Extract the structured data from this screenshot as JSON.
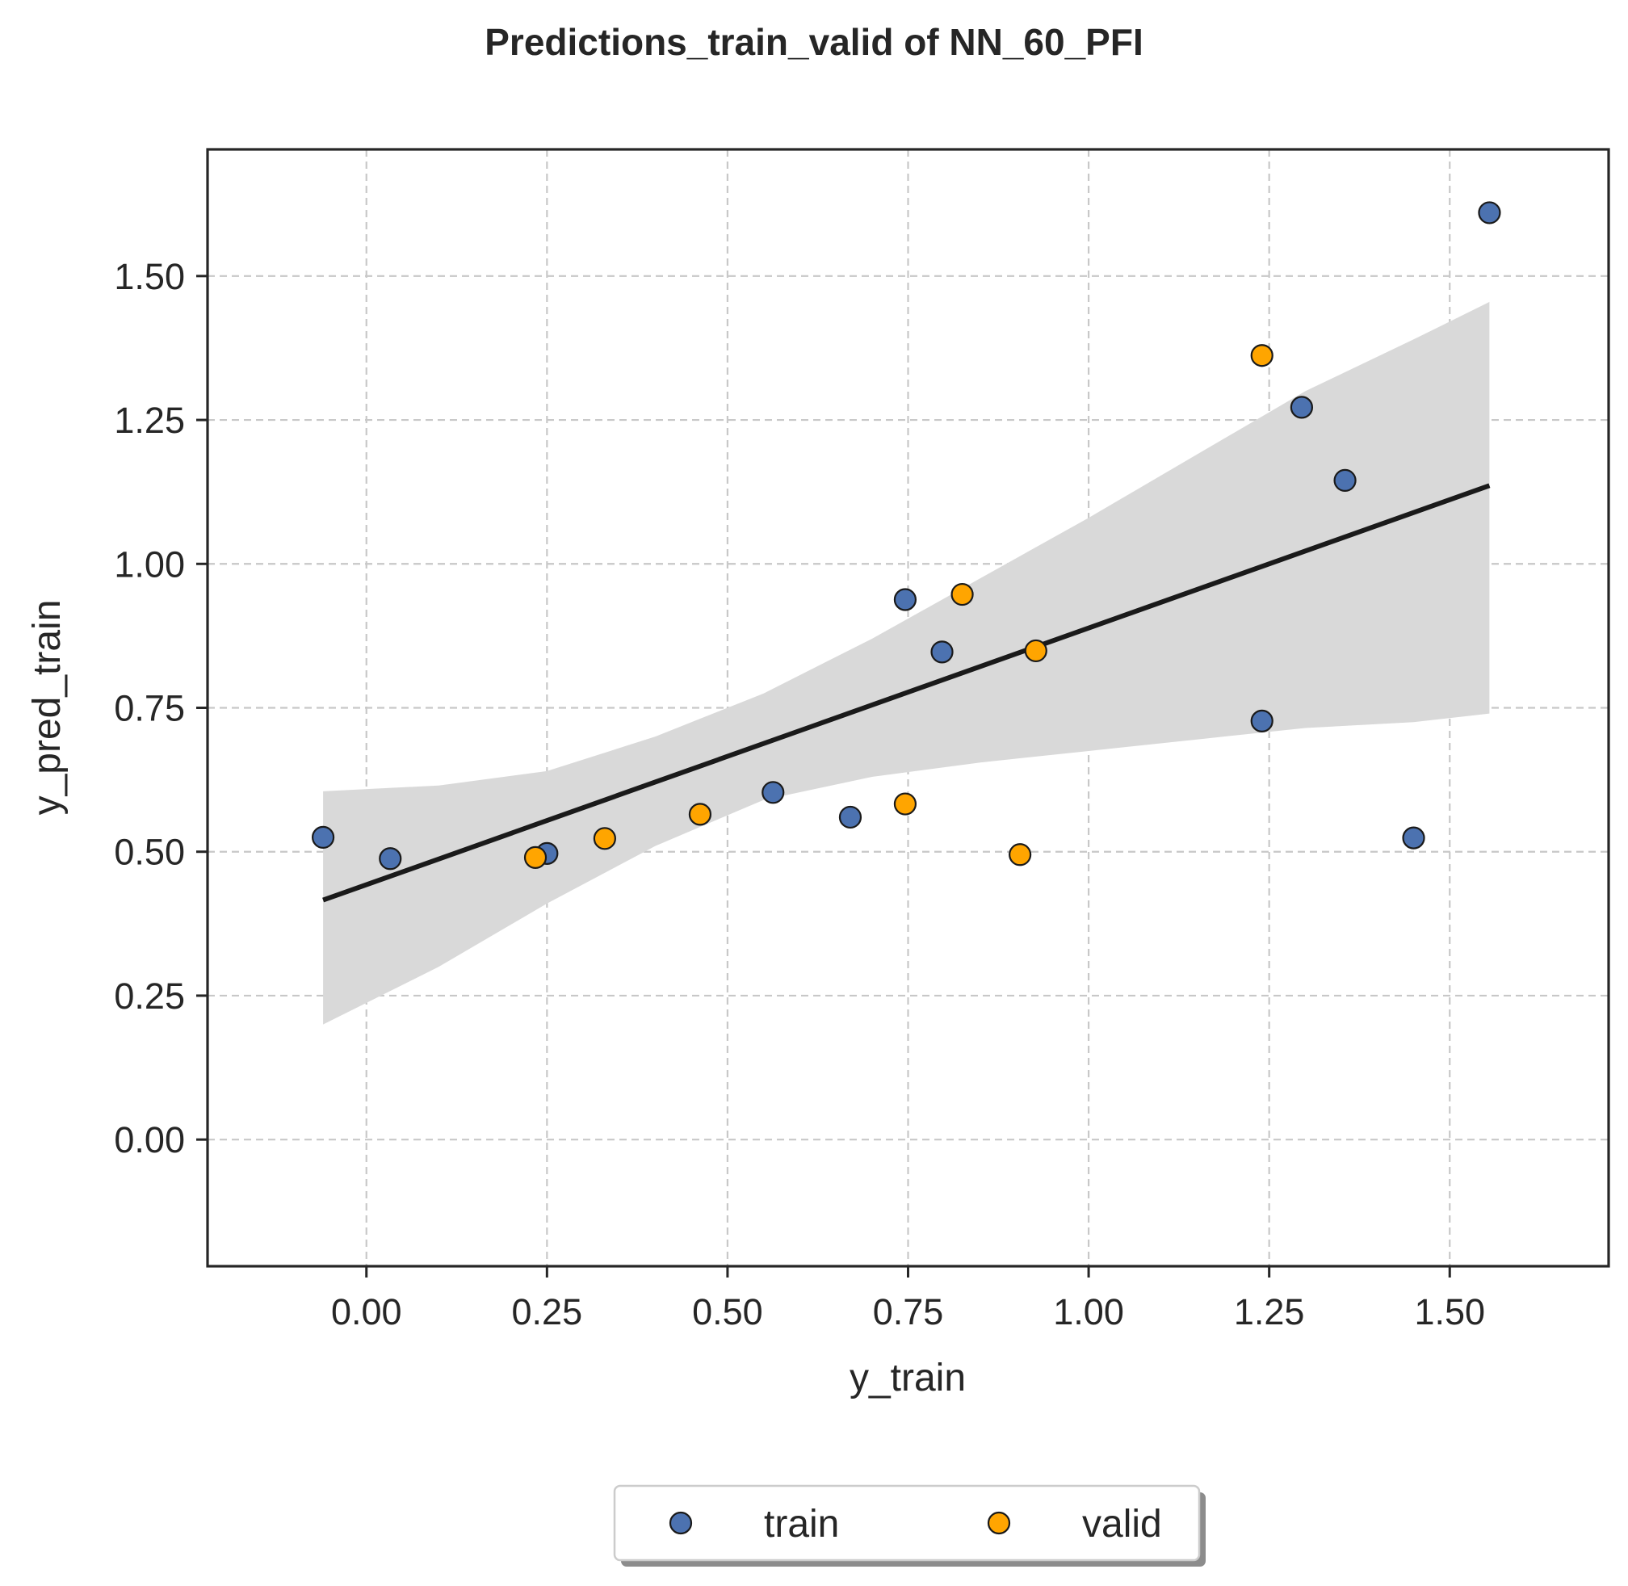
{
  "chart_data": {
    "type": "scatter",
    "title": "Predictions_train_valid of NN_60_PFI",
    "xlabel": "y_train",
    "ylabel": "y_pred_train",
    "xlim": [
      -0.22,
      1.72
    ],
    "ylim": [
      -0.22,
      1.72
    ],
    "xticks": [
      "0.00",
      "0.25",
      "0.50",
      "0.75",
      "1.00",
      "1.25",
      "1.50"
    ],
    "yticks": [
      "0.00",
      "0.25",
      "0.50",
      "0.75",
      "1.00",
      "1.25",
      "1.50"
    ],
    "grid": true,
    "legend_position": "bottom-center",
    "series": [
      {
        "name": "train",
        "color": "#4c72b0",
        "points": [
          [
            -0.06,
            0.525
          ],
          [
            0.033,
            0.488
          ],
          [
            0.25,
            0.497
          ],
          [
            0.563,
            0.603
          ],
          [
            0.67,
            0.56
          ],
          [
            0.746,
            0.938
          ],
          [
            0.797,
            0.847
          ],
          [
            1.24,
            0.727
          ],
          [
            1.295,
            1.272
          ],
          [
            1.355,
            1.145
          ],
          [
            1.45,
            0.524
          ],
          [
            1.555,
            1.61
          ]
        ]
      },
      {
        "name": "valid",
        "color": "#ffa500",
        "points": [
          [
            0.234,
            0.49
          ],
          [
            0.33,
            0.523
          ],
          [
            0.462,
            0.565
          ],
          [
            0.746,
            0.583
          ],
          [
            0.825,
            0.947
          ],
          [
            0.905,
            0.495
          ],
          [
            0.927,
            0.849
          ],
          [
            1.24,
            1.362
          ]
        ]
      }
    ],
    "regression_line": {
      "color": "#1a1a1a",
      "x": [
        -0.06,
        1.555
      ],
      "y": [
        0.416,
        1.136
      ]
    },
    "confidence_band": {
      "color": "#d9d9d9",
      "x": [
        -0.06,
        0.1,
        0.25,
        0.4,
        0.55,
        0.7,
        0.85,
        1.0,
        1.15,
        1.3,
        1.45,
        1.555
      ],
      "upper": [
        0.605,
        0.615,
        0.64,
        0.7,
        0.775,
        0.87,
        0.975,
        1.08,
        1.19,
        1.3,
        1.39,
        1.455
      ],
      "lower": [
        0.2,
        0.3,
        0.41,
        0.51,
        0.59,
        0.63,
        0.655,
        0.675,
        0.695,
        0.715,
        0.725,
        0.74
      ]
    }
  }
}
